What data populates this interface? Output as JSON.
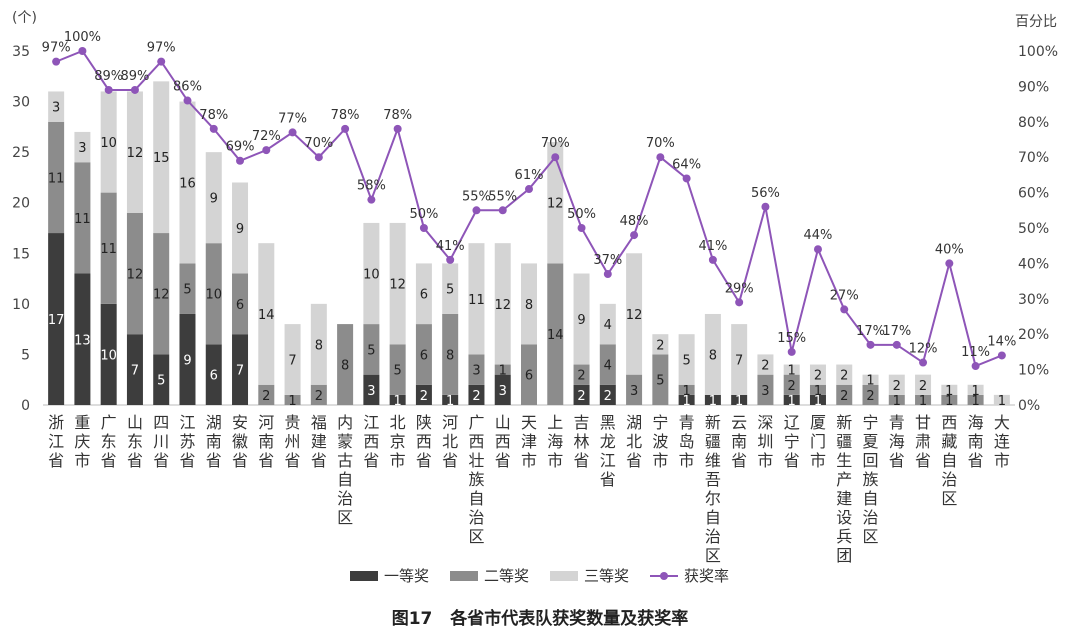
{
  "chart_data": {
    "type": "bar",
    "stacked": true,
    "figure_caption": {
      "number": "图17",
      "text": "各省市代表队获奖数量及获奖率"
    },
    "y_left_label": "(个)",
    "y_right_label": "百分比",
    "ylim": [
      0,
      35
    ],
    "y_ticks": [
      0,
      5,
      10,
      15,
      20,
      25,
      30,
      35
    ],
    "y2lim": [
      0,
      100
    ],
    "y2_ticks": [
      "0%",
      "10%",
      "20%",
      "30%",
      "40%",
      "50%",
      "60%",
      "70%",
      "80%",
      "90%",
      "100%"
    ],
    "legend_position": "bottom",
    "categories": [
      "浙江省",
      "重庆市",
      "广东省",
      "山东省",
      "四川省",
      "江苏省",
      "湖南省",
      "安徽省",
      "河南省",
      "贵州省",
      "福建省",
      "内蒙古自治区",
      "江西省",
      "北京市",
      "陕西省",
      "河北省",
      "广西壮族自治区",
      "山西省",
      "天津市",
      "上海市",
      "吉林省",
      "黑龙江省",
      "湖北省",
      "宁波市",
      "青岛市",
      "新疆维吾尔自治区",
      "云南省",
      "深圳市",
      "辽宁省",
      "厦门市",
      "新疆生产建设兵团",
      "宁夏回族自治区",
      "青海省",
      "甘肃省",
      "西藏自治区",
      "海南省",
      "大连市"
    ],
    "series": [
      {
        "name": "一等奖",
        "color": "#3d3d3d",
        "label_color": "#ffffff",
        "values": [
          17,
          13,
          10,
          7,
          5,
          9,
          6,
          7,
          0,
          0,
          0,
          0,
          3,
          1,
          2,
          1,
          2,
          3,
          0,
          0,
          2,
          2,
          0,
          0,
          1,
          1,
          1,
          0,
          1,
          1,
          0,
          0,
          0,
          0,
          0,
          0,
          0
        ]
      },
      {
        "name": "二等奖",
        "color": "#8c8c8c",
        "label_color": "#222222",
        "values": [
          11,
          11,
          11,
          12,
          12,
          5,
          10,
          6,
          2,
          1,
          2,
          8,
          5,
          5,
          6,
          8,
          3,
          1,
          6,
          14,
          2,
          4,
          3,
          5,
          1,
          0,
          0,
          3,
          2,
          1,
          2,
          2,
          1,
          1,
          1,
          1,
          0
        ]
      },
      {
        "name": "三等奖",
        "color": "#d4d4d4",
        "label_color": "#222222",
        "values": [
          3,
          3,
          10,
          12,
          15,
          16,
          9,
          9,
          14,
          7,
          8,
          0,
          10,
          12,
          6,
          5,
          11,
          12,
          8,
          12,
          9,
          4,
          12,
          2,
          5,
          8,
          7,
          2,
          1,
          2,
          2,
          1,
          2,
          2,
          1,
          1,
          1
        ]
      }
    ],
    "rate_series": {
      "name": "获奖率",
      "color": "#8e55b8",
      "values": [
        97,
        100,
        89,
        89,
        97,
        86,
        78,
        69,
        72,
        77,
        70,
        78,
        58,
        78,
        50,
        41,
        55,
        55,
        61,
        70,
        50,
        37,
        48,
        70,
        64,
        41,
        29,
        56,
        15,
        44,
        27,
        17,
        17,
        12,
        40,
        11,
        14
      ],
      "labels": [
        "97%",
        "100%",
        "89%",
        "89%",
        "97%",
        "86%",
        "78%",
        "69%",
        "72%",
        "77%",
        "70%",
        "78%",
        "58%",
        "78%",
        "50%",
        "41%",
        "55%",
        "55%",
        "61%",
        "70%",
        "50%",
        "37%",
        "48%",
        "70%",
        "64%",
        "41%",
        "29%",
        "56%",
        "15%",
        "44%",
        "27%",
        "17%",
        "17%",
        "12%",
        "40%",
        "11%",
        "14%"
      ]
    }
  }
}
